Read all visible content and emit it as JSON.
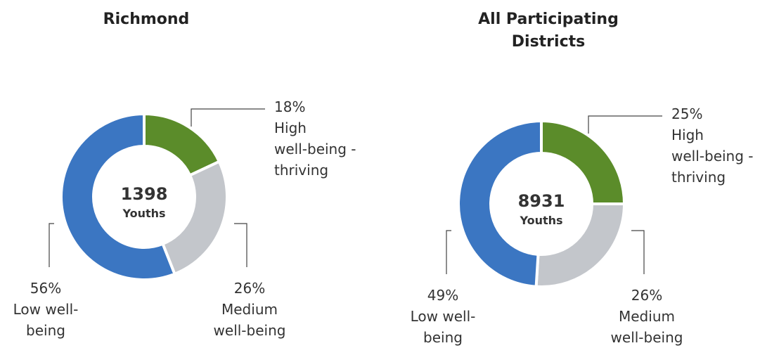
{
  "chart_data": [
    {
      "type": "pie",
      "title": "Richmond",
      "center_value": 1398,
      "center_label": "Youths",
      "categories": [
        "High\nwell-being -\nthriving",
        "Medium\nwell-being",
        "Low well-\nbeing"
      ],
      "values": [
        18,
        26,
        56
      ],
      "value_labels": [
        "18%",
        "26%",
        "56%"
      ],
      "colors": [
        "#5b8c2a",
        "#c3c6cb",
        "#3b76c2"
      ]
    },
    {
      "type": "pie",
      "title": "All Participating\nDistricts",
      "center_value": 8931,
      "center_label": "Youths",
      "categories": [
        "High\nwell-being -\nthriving",
        "Medium\nwell-being",
        "Low well-\nbeing"
      ],
      "values": [
        25,
        26,
        49
      ],
      "value_labels": [
        "25%",
        "26%",
        "49%"
      ],
      "colors": [
        "#5b8c2a",
        "#c3c6cb",
        "#3b76c2"
      ]
    }
  ]
}
